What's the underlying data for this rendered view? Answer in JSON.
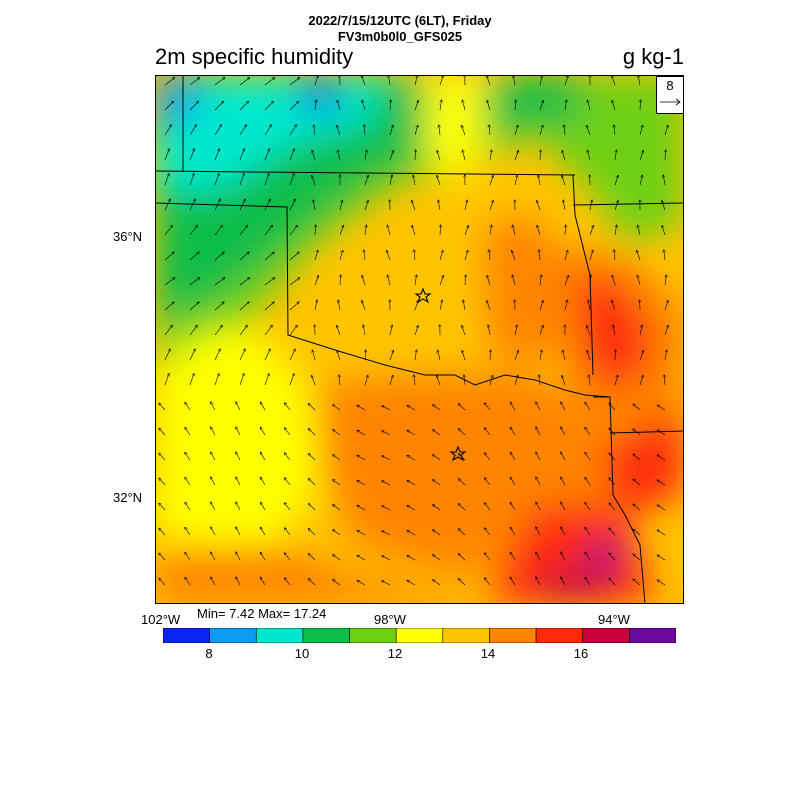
{
  "header": {
    "line1": "2022/7/15/12UTC (6LT), Friday",
    "line2": "FV3m0b0l0_GFS025",
    "title": "2m specific humidity",
    "units": "g kg-1"
  },
  "map": {
    "lat_labels": [
      "36°N",
      "32°N"
    ],
    "lon_labels": [
      "102°W",
      "98°W",
      "94°W"
    ],
    "stats": "Min= 7.42 Max= 17.24",
    "ref_vector": "8"
  },
  "colorbar": {
    "colors": [
      "#0a24f2",
      "#0a9bf5",
      "#00e8cc",
      "#0cbd4a",
      "#6ed012",
      "#ffff00",
      "#ffc400",
      "#ff8400",
      "#ff2a0a",
      "#c8003c",
      "#6a0aa0"
    ],
    "labels": [
      "8",
      "10",
      "12",
      "14",
      "16"
    ]
  }
}
